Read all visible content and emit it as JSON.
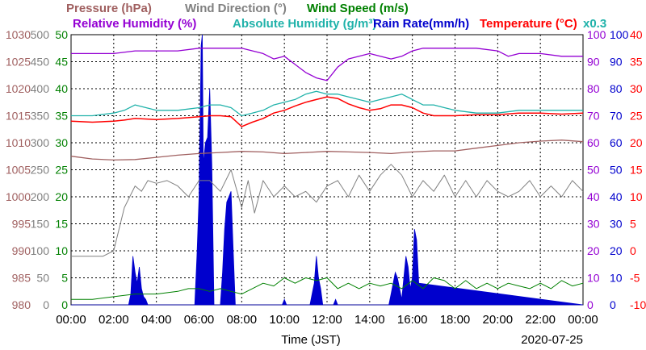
{
  "chart_data": {
    "type": "line",
    "date": "2020-07-25",
    "xlabel": "Time (JST)",
    "x_ticks": [
      "00:00",
      "02:00",
      "04:00",
      "06:00",
      "08:00",
      "10:00",
      "12:00",
      "14:00",
      "16:00",
      "18:00",
      "20:00",
      "22:00",
      "00:00"
    ],
    "xlim": [
      0,
      24
    ],
    "grid": true,
    "legend": [
      {
        "label": "Pressure (hPa)",
        "color": "#a06060"
      },
      {
        "label": "Wind Direction (°)",
        "color": "#808080"
      },
      {
        "label": "Wind Speed (m/s)",
        "color": "#008000"
      },
      {
        "label": "Relative Humidity (%)",
        "color": "#9400d3"
      },
      {
        "label": "Absolute Humidity (g/m³)",
        "color": "#20b2aa"
      },
      {
        "label": "Rain Rate(mm/h)",
        "color": "#0000cd"
      },
      {
        "label": "Temperature (°C)",
        "color": "#ff0000"
      },
      {
        "label": "x0.3",
        "color": "#20b2aa"
      }
    ],
    "axes": {
      "pressure": {
        "ticks": [
          "1030",
          "1025",
          "1020",
          "1015",
          "1010",
          "1005",
          "1000",
          "995",
          "990",
          "985",
          "980"
        ],
        "range": [
          980,
          1030
        ],
        "color": "#a06060"
      },
      "wind_direction": {
        "ticks": [
          "500",
          "450",
          "400",
          "350",
          "300",
          "250",
          "200",
          "150",
          "100",
          "50",
          "0"
        ],
        "range": [
          0,
          500
        ],
        "color": "#808080"
      },
      "wind_speed": {
        "ticks": [
          "50",
          "45",
          "40",
          "35",
          "30",
          "25",
          "20",
          "15",
          "10",
          "5",
          "0"
        ],
        "range": [
          0,
          50
        ],
        "color": "#008000"
      },
      "relative_humidity": {
        "ticks": [
          "100",
          "90",
          "80",
          "70",
          "60",
          "50",
          "40",
          "30",
          "20",
          "10",
          "0"
        ],
        "range": [
          0,
          100
        ],
        "color": "#9400d3"
      },
      "rain_rate": {
        "ticks": [
          "100",
          "90",
          "80",
          "70",
          "60",
          "50",
          "40",
          "30",
          "20",
          "10",
          "0"
        ],
        "range": [
          0,
          100
        ],
        "color": "#0000cd"
      },
      "temperature": {
        "ticks": [
          "40",
          "35",
          "30",
          "25",
          "20",
          "15",
          "10",
          "5",
          "0",
          "-5",
          "-10"
        ],
        "range": [
          -10,
          40
        ],
        "color": "#ff0000"
      }
    },
    "series": [
      {
        "name": "Relative Humidity (%)",
        "axis": "relative_humidity",
        "x": [
          0,
          1,
          2,
          3,
          4,
          5,
          6,
          7,
          8,
          9,
          9.5,
          10,
          10.5,
          11,
          11.5,
          12,
          12.5,
          13,
          13.5,
          14,
          14.5,
          15,
          15.5,
          16,
          16.5,
          17,
          18,
          19,
          20,
          20.5,
          21,
          22,
          23,
          24
        ],
        "values": [
          93,
          93,
          93,
          94,
          94,
          94,
          95,
          95,
          95,
          93,
          91,
          92,
          89,
          86,
          84,
          83,
          88,
          91,
          92,
          93,
          92,
          91,
          92,
          94,
          95,
          95,
          95,
          95,
          94,
          92,
          93,
          93,
          92,
          92
        ]
      },
      {
        "name": "Absolute Humidity (g/m³)",
        "axis": "relative_humidity",
        "x": [
          0,
          1,
          2,
          2.5,
          3,
          4,
          5,
          6,
          6.5,
          7,
          7.5,
          8,
          8.5,
          9,
          9.5,
          10,
          10.5,
          11,
          11.5,
          12,
          12.5,
          13,
          13.5,
          14,
          14.5,
          15,
          15.5,
          16,
          16.5,
          17,
          17.5,
          18,
          19,
          20,
          21,
          22,
          23,
          24
        ],
        "values": [
          70,
          70,
          71,
          72,
          74,
          72,
          72,
          73,
          74,
          74,
          73,
          70,
          71,
          72,
          74,
          75,
          76,
          78,
          79,
          78,
          78,
          77,
          76,
          75,
          76,
          77,
          78,
          76,
          74,
          74,
          73,
          72,
          71,
          71,
          72,
          72,
          72,
          72
        ]
      },
      {
        "name": "Temperature (°C)",
        "axis": "temperature",
        "x": [
          0,
          1,
          2,
          2.5,
          3,
          4,
          5,
          6,
          6.5,
          7,
          7.5,
          8,
          8.5,
          9,
          9.5,
          10,
          10.5,
          11,
          11.5,
          12,
          12.5,
          13,
          13.5,
          14,
          14.5,
          15,
          15.5,
          16,
          16.5,
          17,
          18,
          19,
          20,
          21,
          22,
          23,
          24
        ],
        "values": [
          24,
          23.8,
          24,
          24.2,
          24.5,
          24.3,
          24.5,
          24.8,
          25,
          25,
          24.8,
          23,
          23.8,
          24.5,
          25.5,
          26,
          26.8,
          27.5,
          28,
          28.5,
          28.2,
          27.2,
          26.5,
          26,
          26.3,
          27,
          27,
          26.5,
          25.5,
          25,
          25,
          25.2,
          25.2,
          25.5,
          25.5,
          25.3,
          25.5
        ]
      },
      {
        "name": "Pressure (hPa)",
        "axis": "pressure",
        "x": [
          0,
          1,
          2,
          3,
          4,
          5,
          6,
          7,
          8,
          9,
          10,
          11,
          12,
          13,
          14,
          15,
          16,
          17,
          18,
          19,
          20,
          21,
          22,
          23,
          24
        ],
        "values": [
          1007.5,
          1007,
          1006.8,
          1006.9,
          1007.3,
          1007.7,
          1008,
          1008.2,
          1008.4,
          1008.3,
          1008,
          1008.2,
          1008.4,
          1008.3,
          1008.2,
          1008,
          1008.3,
          1008.5,
          1008.5,
          1009,
          1009.5,
          1010,
          1010.3,
          1010.5,
          1010.2
        ]
      },
      {
        "name": "Wind Direction (°)",
        "axis": "wind_direction",
        "x": [
          0,
          1,
          1.5,
          2,
          2.5,
          3,
          3.3,
          3.6,
          4,
          4.5,
          5,
          5.5,
          6,
          6.5,
          7,
          7.5,
          8,
          8.3,
          8.6,
          9,
          9.5,
          10,
          10.5,
          11,
          11.5,
          12,
          12.5,
          13,
          13.5,
          14,
          14.5,
          15,
          15.5,
          16,
          16.5,
          17,
          17.5,
          18,
          18.5,
          19,
          19.5,
          20,
          20.5,
          21,
          21.5,
          22,
          22.5,
          23,
          23.5,
          24
        ],
        "values": [
          90,
          90,
          90,
          100,
          180,
          220,
          210,
          230,
          225,
          230,
          220,
          200,
          230,
          230,
          210,
          250,
          180,
          230,
          170,
          230,
          200,
          220,
          200,
          210,
          190,
          220,
          230,
          200,
          240,
          210,
          240,
          260,
          240,
          200,
          230,
          210,
          240,
          200,
          230,
          200,
          230,
          210,
          200,
          210,
          230,
          200,
          220,
          200,
          230,
          210
        ]
      },
      {
        "name": "Wind Speed (m/s)",
        "axis": "wind_speed",
        "x": [
          0,
          1,
          2,
          3,
          4,
          5,
          5.5,
          6,
          6.5,
          7,
          7.5,
          8,
          8.5,
          9,
          9.5,
          10,
          10.5,
          11,
          11.5,
          12,
          12.5,
          13,
          13.5,
          14,
          14.5,
          15,
          15.5,
          16,
          16.5,
          17,
          17.5,
          18,
          18.5,
          19,
          19.5,
          20,
          20.5,
          21,
          21.5,
          22,
          22.5,
          23,
          23.5,
          24
        ],
        "values": [
          1,
          1,
          1.5,
          2,
          2,
          2.5,
          3,
          3,
          2.5,
          3,
          2.5,
          2,
          3,
          4,
          3.5,
          5,
          4,
          5,
          4.5,
          5,
          3,
          4,
          3,
          4,
          3.5,
          4,
          3,
          4.5,
          3,
          5,
          4.5,
          3,
          4.5,
          3,
          4,
          3,
          4,
          3.5,
          3,
          4,
          3,
          4.5,
          3.5,
          4
        ]
      },
      {
        "name": "Rain Rate(mm/h)",
        "axis": "rain_rate",
        "x": [
          0,
          2.7,
          2.8,
          2.9,
          3.0,
          3.1,
          3.2,
          3.3,
          3.4,
          3.5,
          3.6,
          5.8,
          5.9,
          6.0,
          6.1,
          6.15,
          6.2,
          6.3,
          6.4,
          6.5,
          6.6,
          6.7,
          7.0,
          7.1,
          7.2,
          7.3,
          7.4,
          7.5,
          7.6,
          7.7,
          9.9,
          10.0,
          10.1,
          10.3,
          10.6,
          11.2,
          11.3,
          11.4,
          11.5,
          11.6,
          11.7,
          11.8,
          12.3,
          12.4,
          12.5,
          14.9,
          15.0,
          15.1,
          15.2,
          15.3,
          15.5,
          15.6,
          15.7,
          15.8,
          15.9,
          16.0,
          16.1,
          16.2,
          16.3,
          24
        ],
        "values": [
          0,
          0,
          4,
          18,
          12,
          8,
          14,
          6,
          3,
          2,
          0,
          0,
          18,
          40,
          96,
          100,
          52,
          60,
          62,
          80,
          52,
          0,
          0,
          12,
          28,
          38,
          40,
          42,
          20,
          0,
          0,
          2,
          0,
          0,
          0,
          0,
          4,
          8,
          18,
          10,
          6,
          0,
          0,
          2,
          0,
          0,
          4,
          8,
          12,
          10,
          2,
          10,
          18,
          14,
          6,
          10,
          28,
          24,
          8,
          0
        ]
      }
    ]
  }
}
